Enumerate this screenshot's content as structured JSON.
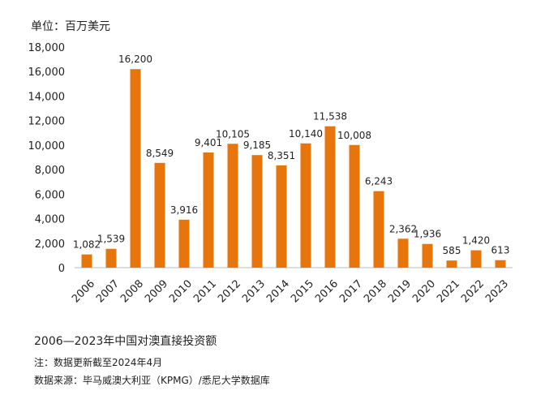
{
  "chart_data": {
    "type": "bar",
    "ylabel": "单位：百万美元",
    "xlabel": "",
    "title": "",
    "ylim": [
      0,
      18000
    ],
    "yticks": [
      0,
      2000,
      4000,
      6000,
      8000,
      10000,
      12000,
      14000,
      16000,
      18000
    ],
    "ytick_labels": [
      "0",
      "2,000",
      "4,000",
      "6,000",
      "8,000",
      "10,000",
      "12,000",
      "14,000",
      "16,000",
      "18,000"
    ],
    "grid": false,
    "bar_color": "#E8740C",
    "categories": [
      "2006",
      "2007",
      "2008",
      "2009",
      "2010",
      "2011",
      "2012",
      "2013",
      "2014",
      "2015",
      "2016",
      "2017",
      "2018",
      "2019",
      "2020",
      "2021",
      "2022",
      "2023"
    ],
    "values": [
      1082,
      1539,
      16200,
      8549,
      3916,
      9401,
      10105,
      9185,
      8351,
      10140,
      11538,
      10008,
      6243,
      2362,
      1936,
      585,
      1420,
      613
    ],
    "data_labels": [
      "1,082",
      "1,539",
      "16,200",
      "8,549",
      "3,916",
      "9,401",
      "10,105",
      "9,185",
      "8,351",
      "10,140",
      "11,538",
      "10,008",
      "6,243",
      "2,362",
      "1,936",
      "585",
      "1,420",
      "613"
    ]
  },
  "caption": "2006—2023年中国对澳直接投资额",
  "note": "注：数据更新截至2024年4月",
  "source": "数据来源：毕马威澳大利亚（KPMG）/悉尼大学数据库"
}
